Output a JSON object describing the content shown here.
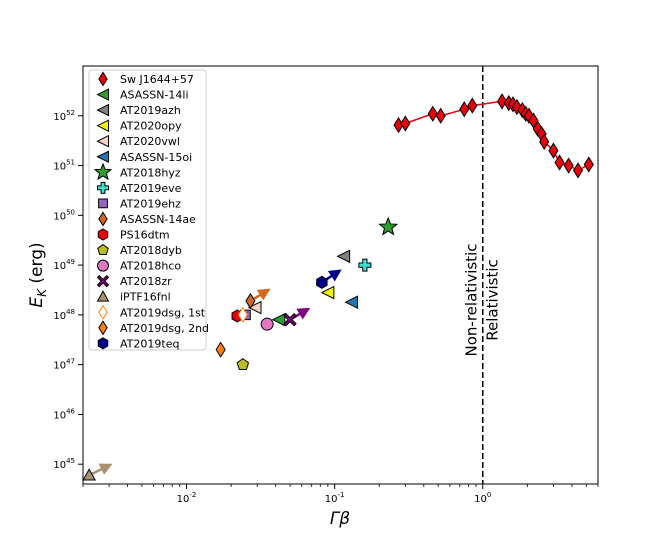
{
  "chart_data": {
    "type": "scatter",
    "title": "",
    "xlabel": "Γβ",
    "ylabel": "E_K (erg)",
    "x_scale": "log",
    "y_scale": "log",
    "xlim": [
      0.002,
      6
    ],
    "ylim": [
      4e+44,
      1e+53
    ],
    "grid": false,
    "legend_position": "top-left",
    "x_ticks": [
      {
        "value": 0.01,
        "label": "10^-2"
      },
      {
        "value": 0.1,
        "label": "10^-1"
      },
      {
        "value": 1,
        "label": "10^0"
      }
    ],
    "y_ticks": [
      {
        "value": 1e+45,
        "label": "10^45"
      },
      {
        "value": 1e+46,
        "label": "10^46"
      },
      {
        "value": 1e+47,
        "label": "10^47"
      },
      {
        "value": 1e+48,
        "label": "10^48"
      },
      {
        "value": 1e+49,
        "label": "10^49"
      },
      {
        "value": 1e+50,
        "label": "10^50"
      },
      {
        "value": 1e+51,
        "label": "10^51"
      },
      {
        "value": 1e+52,
        "label": "10^52"
      }
    ],
    "divider": {
      "x": 1,
      "style": "dashed",
      "left_label": "Non-relativistic",
      "right_label": "Relativistic"
    },
    "series": [
      {
        "name": "Sw J1644+57",
        "marker": "diamond",
        "color": "#e8000b",
        "line": true,
        "points": [
          [
            0.27,
            6.5e+51
          ],
          [
            0.3,
            7e+51
          ],
          [
            0.46,
            1.1e+52
          ],
          [
            0.52,
            1e+52
          ],
          [
            0.75,
            1.35e+52
          ],
          [
            0.85,
            1.6e+52
          ],
          [
            1.35,
            1.95e+52
          ],
          [
            1.5,
            1.8e+52
          ],
          [
            1.6,
            1.7e+52
          ],
          [
            1.7,
            1.5e+52
          ],
          [
            1.85,
            1.3e+52
          ],
          [
            1.95,
            1.1e+52
          ],
          [
            2.05,
            1e+52
          ],
          [
            2.2,
            8e+51
          ],
          [
            2.35,
            5.5e+51
          ],
          [
            2.5,
            4.3e+51
          ],
          [
            2.6,
            3e+51
          ],
          [
            3.0,
            2e+51
          ],
          [
            3.3,
            1.15e+51
          ],
          [
            3.8,
            1e+51
          ],
          [
            4.4,
            8e+50
          ],
          [
            5.2,
            1.05e+51
          ]
        ]
      },
      {
        "name": "ASASSN-14li",
        "marker": "triangle-left",
        "color": "#2ca02c",
        "points": [
          [
            0.042,
            8e+47
          ]
        ]
      },
      {
        "name": "AT2019azh",
        "marker": "triangle-left",
        "color": "#808080",
        "points": [
          [
            0.115,
            1.5e+49
          ]
        ]
      },
      {
        "name": "AT2020opy",
        "marker": "triangle-left",
        "color": "#f5f500",
        "points": [
          [
            0.09,
            2.8e+48
          ]
        ]
      },
      {
        "name": "AT2020vwl",
        "marker": "triangle-left",
        "color": "#f3d3c4",
        "points": [
          [
            0.029,
            1.4e+48
          ]
        ]
      },
      {
        "name": "ASASSN-15oi",
        "marker": "triangle-left",
        "color": "#1f77b4",
        "points": [
          [
            0.13,
            1.8e+48
          ]
        ]
      },
      {
        "name": "AT2018hyz",
        "marker": "star",
        "color": "#2ca02c",
        "points": [
          [
            0.23,
            5.8e+49
          ]
        ]
      },
      {
        "name": "AT2019eve",
        "marker": "plus",
        "color": "#40e0d0",
        "points": [
          [
            0.16,
            1e+49
          ]
        ]
      },
      {
        "name": "AT2019ehz",
        "marker": "square",
        "color": "#9467bd",
        "points": [
          [
            0.025,
            1e+48
          ]
        ]
      },
      {
        "name": "ASASSN-14ae",
        "marker": "diamond",
        "color": "#d2691e",
        "points": [
          [
            0.027,
            1.9e+48
          ]
        ]
      },
      {
        "name": "PS16dtm",
        "marker": "hexagon",
        "color": "#e8000b",
        "points": [
          [
            0.022,
            9.5e+47
          ]
        ]
      },
      {
        "name": "AT2018dyb",
        "marker": "pentagon",
        "color": "#bcbd22",
        "points": [
          [
            0.024,
            1e+47
          ]
        ]
      },
      {
        "name": "AT2018hco",
        "marker": "circle",
        "color": "#e377c2",
        "points": [
          [
            0.035,
            6.5e+47
          ]
        ]
      },
      {
        "name": "AT2018zr",
        "marker": "x",
        "color": "#800080",
        "points": [
          [
            0.05,
            8e+47
          ]
        ]
      },
      {
        "name": "iPTF16fnl",
        "marker": "triangle-up",
        "color": "#a89070",
        "points": [
          [
            0.0022,
            6e+44
          ]
        ]
      },
      {
        "name": "AT2019dsg, 1st",
        "marker": "diamond-open",
        "color": "#ff7f0e",
        "points": [
          [
            0.024,
            1e+48
          ]
        ]
      },
      {
        "name": "AT2019dsg, 2nd",
        "marker": "diamond",
        "color": "#ff7f0e",
        "points": [
          [
            0.017,
            2e+47
          ]
        ]
      },
      {
        "name": "AT2019teq",
        "marker": "hexagon",
        "color": "#00008b",
        "points": [
          [
            0.082,
            4.5e+48
          ]
        ]
      }
    ],
    "arrows": [
      {
        "color": "#a89070",
        "from": [
          0.0022,
          6e+44
        ],
        "to": [
          0.0029,
          9e+44
        ]
      },
      {
        "color": "#d2691e",
        "from": [
          0.027,
          1.9e+48
        ],
        "to": [
          0.034,
          2.9e+48
        ]
      },
      {
        "color": "#800080",
        "from": [
          0.05,
          8e+47
        ],
        "to": [
          0.063,
          1.2e+48
        ]
      },
      {
        "color": "#00008b",
        "from": [
          0.082,
          4.5e+48
        ],
        "to": [
          0.103,
          7e+48
        ]
      }
    ]
  }
}
